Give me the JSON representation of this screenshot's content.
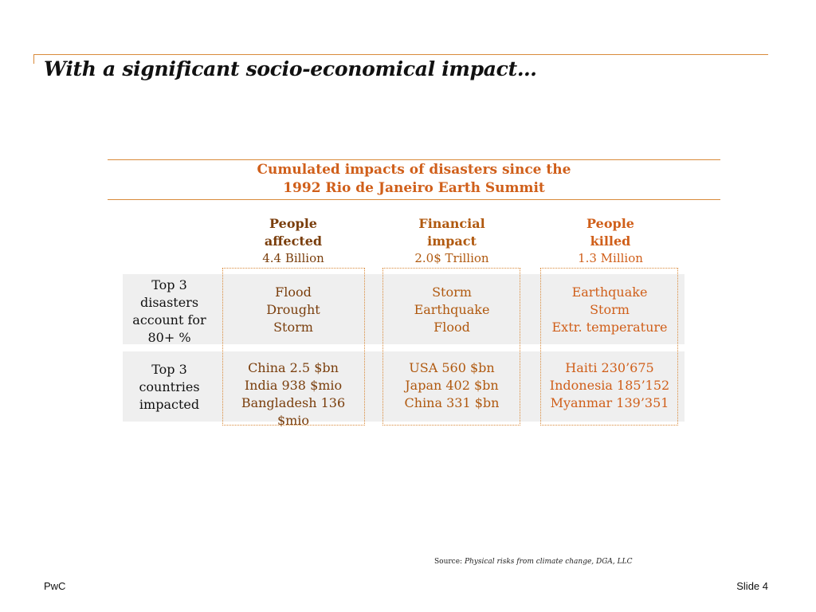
{
  "title": "With a significant socio-economical impact…",
  "colors": {
    "accent": "#d98a3a",
    "orange_text": "#d05f1a",
    "brown_text": "#7a3e0c",
    "band": "#efefef"
  },
  "table": {
    "header_lines": [
      "Cumulated impacts of disasters since the",
      "1992 Rio de Janeiro Earth Summit"
    ],
    "columns": [
      {
        "title_lines": [
          "People",
          "affected"
        ],
        "value": "4.4 Billion",
        "color": "#7a3e0c",
        "disasters": [
          "Flood",
          "Drought",
          "Storm"
        ],
        "countries": [
          "China 2.5 $bn",
          "India 938 $mio",
          "Bangladesh 136",
          "$mio"
        ]
      },
      {
        "title_lines": [
          "Financial",
          "impact"
        ],
        "value": "2.0$ Trillion",
        "color": "#b0590f",
        "disasters": [
          "Storm",
          "Earthquake",
          "Flood"
        ],
        "countries": [
          "USA 560 $bn",
          "Japan 402 $bn",
          "China 331 $bn"
        ]
      },
      {
        "title_lines": [
          "People",
          "killed"
        ],
        "value": "1.3 Million",
        "color": "#d05f1a",
        "disasters": [
          "Earthquake",
          "Storm",
          "Extr. temperature"
        ],
        "countries": [
          "Haiti 230’675",
          "Indonesia 185’152",
          "Myanmar 139’351"
        ]
      }
    ],
    "row_labels": [
      [
        "Top 3",
        "disasters",
        "account for",
        "80+ %"
      ],
      [
        "Top 3",
        "countries",
        "impacted"
      ]
    ]
  },
  "source": {
    "prefix": "Source: ",
    "text": "Physical risks from climate change, DGA, LLC"
  },
  "footer": {
    "left": "PwC",
    "right": "Slide 4"
  }
}
